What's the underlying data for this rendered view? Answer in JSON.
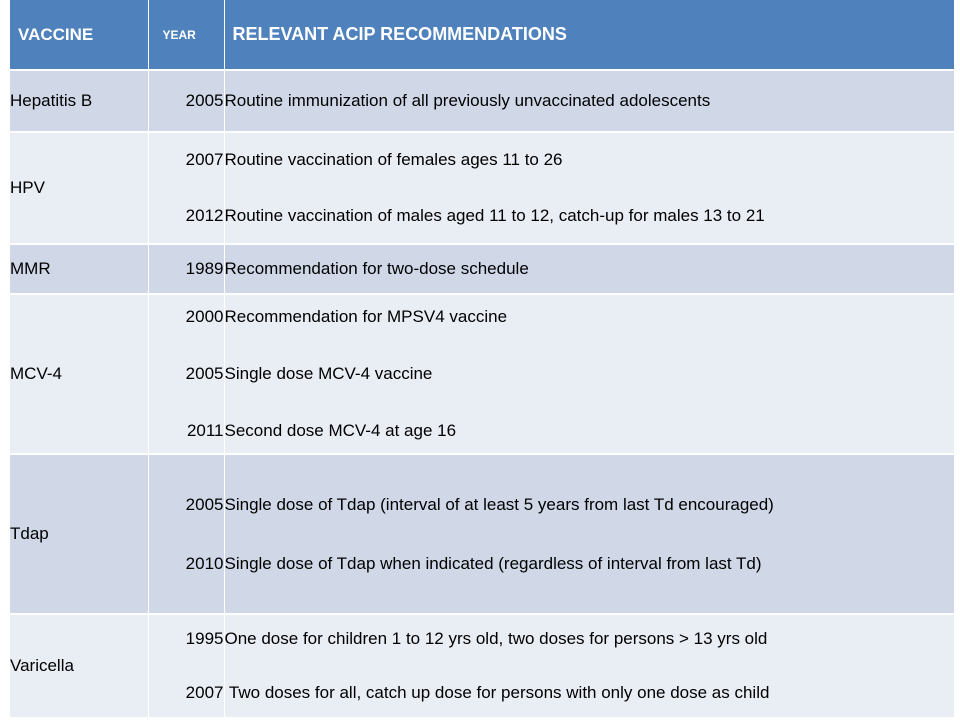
{
  "headers": {
    "vaccine": "VACCINE",
    "year": "YEAR",
    "recommendations": "RELEVANT ACIP RECOMMENDATIONS"
  },
  "rows": [
    {
      "vaccine": "Hepatitis B",
      "years": [
        "2005"
      ],
      "recommendations": [
        "Routine immunization of all previously unvaccinated adolescents"
      ]
    },
    {
      "vaccine": "HPV",
      "years": [
        "2007",
        "2012"
      ],
      "recommendations": [
        "Routine vaccination of females ages 11 to 26",
        "Routine vaccination of males aged 11 to 12, catch-up for males 13 to 21"
      ]
    },
    {
      "vaccine": "MMR",
      "years": [
        "1989"
      ],
      "recommendations": [
        "Recommendation for two-dose schedule"
      ]
    },
    {
      "vaccine": "MCV-4",
      "years": [
        "2000",
        "2005",
        "2011"
      ],
      "recommendations": [
        "Recommendation for MPSV4 vaccine",
        "Single dose MCV-4 vaccine",
        "Second dose MCV-4 at age 16"
      ]
    },
    {
      "vaccine": "Tdap",
      "years": [
        "2005",
        "2010"
      ],
      "recommendations": [
        "Single dose of Tdap  (interval of at least 5 years from last Td encouraged)",
        "Single dose of Tdap when indicated (regardless of interval from last Td)"
      ]
    },
    {
      "vaccine": "Varicella",
      "years": [
        "1995",
        "2007"
      ],
      "recommendations": [
        "One dose for children 1 to 12 yrs old, two doses for persons > 13 yrs old",
        " Two doses for all, catch up dose for persons with only one dose as child"
      ]
    }
  ],
  "colors": {
    "header_bg": "#4f81bd",
    "row_dark": "#d0d8e8",
    "row_light": "#e9edf4",
    "header_text": "#ffffff"
  }
}
